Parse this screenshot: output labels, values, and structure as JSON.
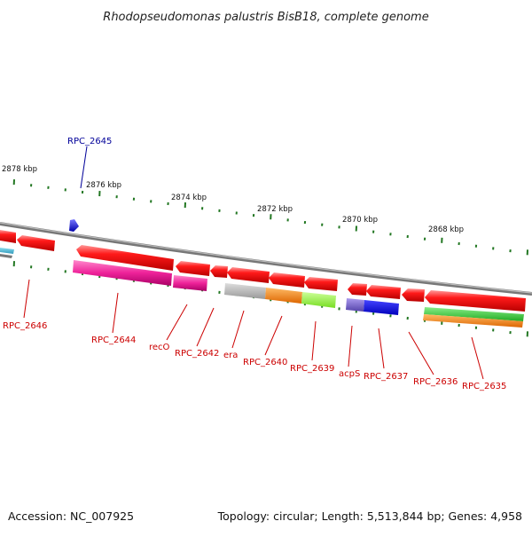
{
  "title": "Rhodopseudomonas palustris BisB18, complete genome",
  "accession_text": "Accession: NC_007925",
  "topology_text": "Topology: circular; Length: 5,513,844 bp; Genes: 4,958",
  "colors": {
    "forward_gene": "#ff0000",
    "highlight_gene": "#0000dd",
    "label_red": "#cc0000",
    "label_blue": "#000099",
    "backbone": "#888888",
    "tick": "#227722",
    "pink": "#ee2299",
    "gray": "#bbbbbb",
    "orange": "#ff8800",
    "lime": "#99ff33",
    "lavender": "#7766cc",
    "blue": "#0000ee",
    "green": "#33cc33"
  },
  "kbp_labels": [
    "2878 kbp",
    "2876 kbp",
    "2874 kbp",
    "2872 kbp",
    "2870 kbp",
    "2868 kbp"
  ],
  "gene_labels": [
    {
      "id": "RPC_2646",
      "text": "RPC_2646"
    },
    {
      "id": "RPC_2645",
      "text": "RPC_2645"
    },
    {
      "id": "RPC_2644",
      "text": "RPC_2644"
    },
    {
      "id": "recO",
      "text": "recO"
    },
    {
      "id": "RPC_2642",
      "text": "RPC_2642"
    },
    {
      "id": "era",
      "text": "era"
    },
    {
      "id": "RPC_2640",
      "text": "RPC_2640"
    },
    {
      "id": "RPC_2639",
      "text": "RPC_2639"
    },
    {
      "id": "acpS",
      "text": "acpS"
    },
    {
      "id": "RPC_2637",
      "text": "RPC_2637"
    },
    {
      "id": "RPC_2636",
      "text": "RPC_2636"
    },
    {
      "id": "RPC_2635",
      "text": "RPC_2635"
    }
  ]
}
